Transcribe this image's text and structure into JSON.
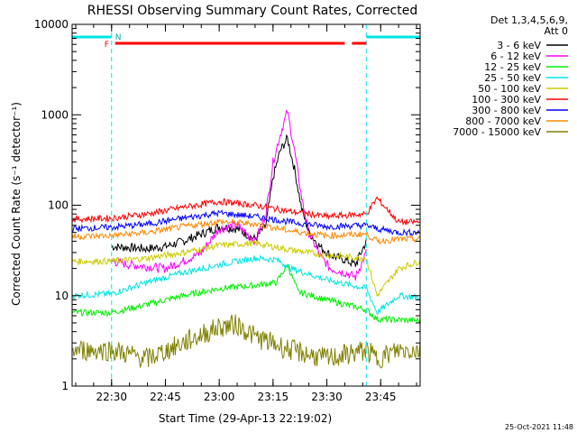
{
  "chart_data": {
    "type": "line",
    "title": "RHESSI Observing Summary Count Rates, Corrected",
    "xlabel": "Start Time (29-Apr-13 22:19:02)",
    "ylabel": "Corrected Count Rate (s⁻¹ detector⁻¹)",
    "yscale": "log",
    "ylim": [
      1,
      10000
    ],
    "x_range_minutes": [
      "22:19",
      "23:56"
    ],
    "yticks": [
      "1",
      "10",
      "100",
      "1000",
      "10000"
    ],
    "xticks": [
      "22:30",
      "22:45",
      "23:00",
      "23:15",
      "23:30",
      "23:45"
    ],
    "grid": false,
    "legend_position": "top-right",
    "legend_header": [
      "Det 1,3,4,5,6,9,",
      "Att 0"
    ],
    "footer_date": "25-Oct-2021 11:48",
    "flags": {
      "F_label": "F",
      "N_label": "N",
      "night_bars": [
        [
          "22:19",
          "22:30"
        ],
        [
          "23:41",
          "23:56"
        ]
      ],
      "flare_segments": [
        [
          "22:31",
          "23:35"
        ],
        [
          "23:37",
          "23:41"
        ]
      ]
    },
    "series": [
      {
        "name": "3 - 6 keV",
        "color": "#000000",
        "x": [
          "22:30",
          "22:35",
          "22:40",
          "22:45",
          "22:50",
          "22:55",
          "23:00",
          "23:05",
          "23:10",
          "23:13",
          "23:15",
          "23:17",
          "23:19",
          "23:21",
          "23:23",
          "23:25",
          "23:28",
          "23:31",
          "23:35",
          "23:38",
          "23:41"
        ],
        "values": [
          35,
          34,
          33,
          35,
          40,
          48,
          58,
          55,
          42,
          60,
          200,
          400,
          550,
          250,
          90,
          50,
          35,
          28,
          25,
          22,
          40
        ]
      },
      {
        "name": "6 - 12 keV",
        "color": "#ff00ff",
        "x": [
          "22:30",
          "22:35",
          "22:40",
          "22:45",
          "22:50",
          "22:55",
          "23:00",
          "23:05",
          "23:10",
          "23:13",
          "23:15",
          "23:17",
          "23:19",
          "23:21",
          "23:23",
          "23:25",
          "23:28",
          "23:31",
          "23:35",
          "23:38",
          "23:41"
        ],
        "values": [
          24,
          22,
          21,
          20,
          24,
          30,
          55,
          60,
          40,
          80,
          300,
          600,
          1100,
          400,
          120,
          50,
          28,
          20,
          18,
          16,
          30
        ]
      },
      {
        "name": "12 - 25 keV",
        "color": "#00ee00",
        "x": [
          "22:19",
          "22:30",
          "22:40",
          "22:50",
          "23:00",
          "23:10",
          "23:16",
          "23:19",
          "23:22",
          "23:30",
          "23:41",
          "23:44",
          "23:56"
        ],
        "values": [
          6.5,
          6.5,
          8,
          10,
          12,
          13,
          14,
          22,
          11,
          9,
          7,
          5.5,
          5.3
        ]
      },
      {
        "name": "25 - 50 keV",
        "color": "#00e5e5",
        "x": [
          "22:19",
          "22:30",
          "22:40",
          "22:50",
          "23:00",
          "23:10",
          "23:16",
          "23:20",
          "23:30",
          "23:41",
          "23:44",
          "23:50",
          "23:56"
        ],
        "values": [
          10,
          10.5,
          14,
          18,
          22,
          26,
          25,
          20,
          15,
          12,
          6.5,
          10,
          9.5
        ]
      },
      {
        "name": "50 - 100 keV",
        "color": "#cccc00",
        "x": [
          "22:19",
          "22:30",
          "22:40",
          "22:50",
          "23:00",
          "23:10",
          "23:20",
          "23:30",
          "23:41",
          "23:44",
          "23:50",
          "23:56"
        ],
        "values": [
          24,
          24,
          26,
          30,
          36,
          38,
          32,
          28,
          26,
          10,
          20,
          24
        ]
      },
      {
        "name": "100 - 300 keV",
        "color": "#ff0000",
        "x": [
          "22:19",
          "22:30",
          "22:40",
          "22:50",
          "23:00",
          "23:10",
          "23:20",
          "23:30",
          "23:41",
          "23:44",
          "23:50",
          "23:56"
        ],
        "values": [
          70,
          72,
          80,
          95,
          110,
          100,
          85,
          75,
          80,
          120,
          65,
          65
        ]
      },
      {
        "name": "300 - 800 keV",
        "color": "#0000ff",
        "x": [
          "22:19",
          "22:30",
          "22:40",
          "22:50",
          "23:00",
          "23:10",
          "23:20",
          "23:30",
          "23:41",
          "23:44",
          "23:50",
          "23:56"
        ],
        "values": [
          55,
          57,
          62,
          72,
          82,
          75,
          65,
          58,
          60,
          55,
          50,
          50
        ]
      },
      {
        "name": "800 - 7000 keV",
        "color": "#ff8800",
        "x": [
          "22:19",
          "22:30",
          "22:40",
          "22:50",
          "23:00",
          "23:10",
          "23:20",
          "23:30",
          "23:41",
          "23:44",
          "23:50",
          "23:56"
        ],
        "values": [
          45,
          46,
          50,
          58,
          66,
          62,
          52,
          46,
          48,
          40,
          42,
          42
        ]
      },
      {
        "name": "7000 - 15000 keV",
        "color": "#808000",
        "x": [
          "22:19",
          "22:30",
          "22:40",
          "22:50",
          "23:00",
          "23:05",
          "23:10",
          "23:20",
          "23:30",
          "23:41",
          "23:44",
          "23:50",
          "23:56"
        ],
        "values": [
          2.5,
          2.5,
          2,
          3,
          4.5,
          4.8,
          3.5,
          2.5,
          2,
          2.5,
          2,
          2.5,
          2.5
        ]
      }
    ]
  }
}
